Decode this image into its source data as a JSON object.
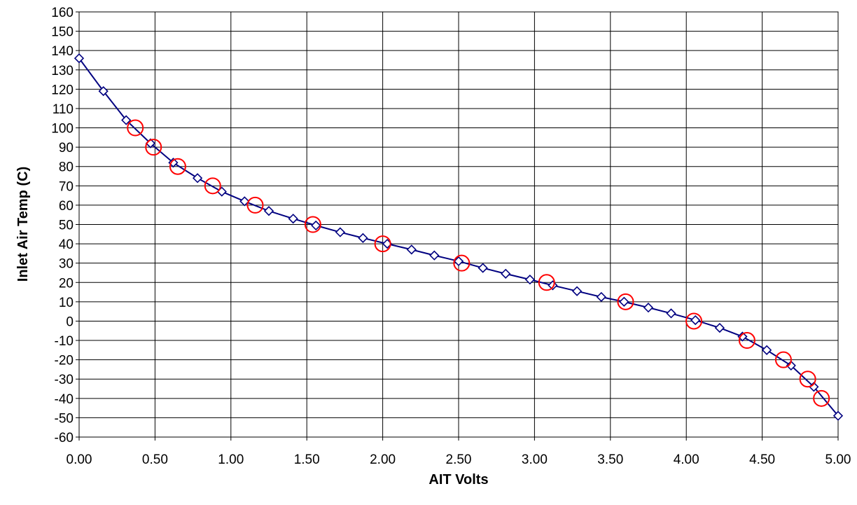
{
  "chart_data": {
    "type": "scatter",
    "title": "",
    "xlabel": "AIT Volts",
    "ylabel": "Inlet Air Temp (C)",
    "xlim": [
      0,
      5
    ],
    "ylim": [
      -60,
      160
    ],
    "x_ticks": [
      "0.00",
      "0.50",
      "1.00",
      "1.50",
      "2.00",
      "2.50",
      "3.00",
      "3.50",
      "4.00",
      "4.50",
      "5.00"
    ],
    "y_ticks": [
      "160",
      "150",
      "140",
      "130",
      "120",
      "110",
      "100",
      "90",
      "80",
      "70",
      "60",
      "50",
      "40",
      "30",
      "20",
      "10",
      "0",
      "-10",
      "-20",
      "-30",
      "-40",
      "-50",
      "-60"
    ],
    "grid": true,
    "legend": "none",
    "series": [
      {
        "marker": "diamond",
        "line": true,
        "color": "#000080",
        "points": [
          [
            0.0,
            136
          ],
          [
            0.16,
            119
          ],
          [
            0.31,
            104
          ],
          [
            0.47,
            92
          ],
          [
            0.62,
            82
          ],
          [
            0.78,
            74
          ],
          [
            0.94,
            67
          ],
          [
            1.09,
            62
          ],
          [
            1.25,
            57
          ],
          [
            1.41,
            53
          ],
          [
            1.56,
            49.5
          ],
          [
            1.72,
            46
          ],
          [
            1.87,
            43
          ],
          [
            2.03,
            40
          ],
          [
            2.19,
            37
          ],
          [
            2.34,
            34
          ],
          [
            2.5,
            31
          ],
          [
            2.66,
            27.5
          ],
          [
            2.81,
            24.5
          ],
          [
            2.97,
            21.5
          ],
          [
            3.12,
            18.5
          ],
          [
            3.28,
            15.5
          ],
          [
            3.44,
            12.5
          ],
          [
            3.59,
            10
          ],
          [
            3.75,
            7
          ],
          [
            3.9,
            4
          ],
          [
            4.06,
            0.5
          ],
          [
            4.22,
            -3.5
          ],
          [
            4.37,
            -8
          ],
          [
            4.53,
            -15
          ],
          [
            4.69,
            -23
          ],
          [
            4.84,
            -34
          ],
          [
            5.0,
            -49
          ]
        ]
      },
      {
        "marker": "circle",
        "line": false,
        "color": "#ff0000",
        "points": [
          [
            0.37,
            100
          ],
          [
            0.49,
            90
          ],
          [
            0.65,
            80
          ],
          [
            0.88,
            70
          ],
          [
            1.16,
            60
          ],
          [
            1.54,
            50
          ],
          [
            2.0,
            40
          ],
          [
            2.52,
            30
          ],
          [
            3.08,
            20
          ],
          [
            3.6,
            10
          ],
          [
            4.05,
            0
          ],
          [
            4.4,
            -10
          ],
          [
            4.64,
            -20
          ],
          [
            4.8,
            -30
          ],
          [
            4.89,
            -40
          ]
        ]
      }
    ]
  }
}
